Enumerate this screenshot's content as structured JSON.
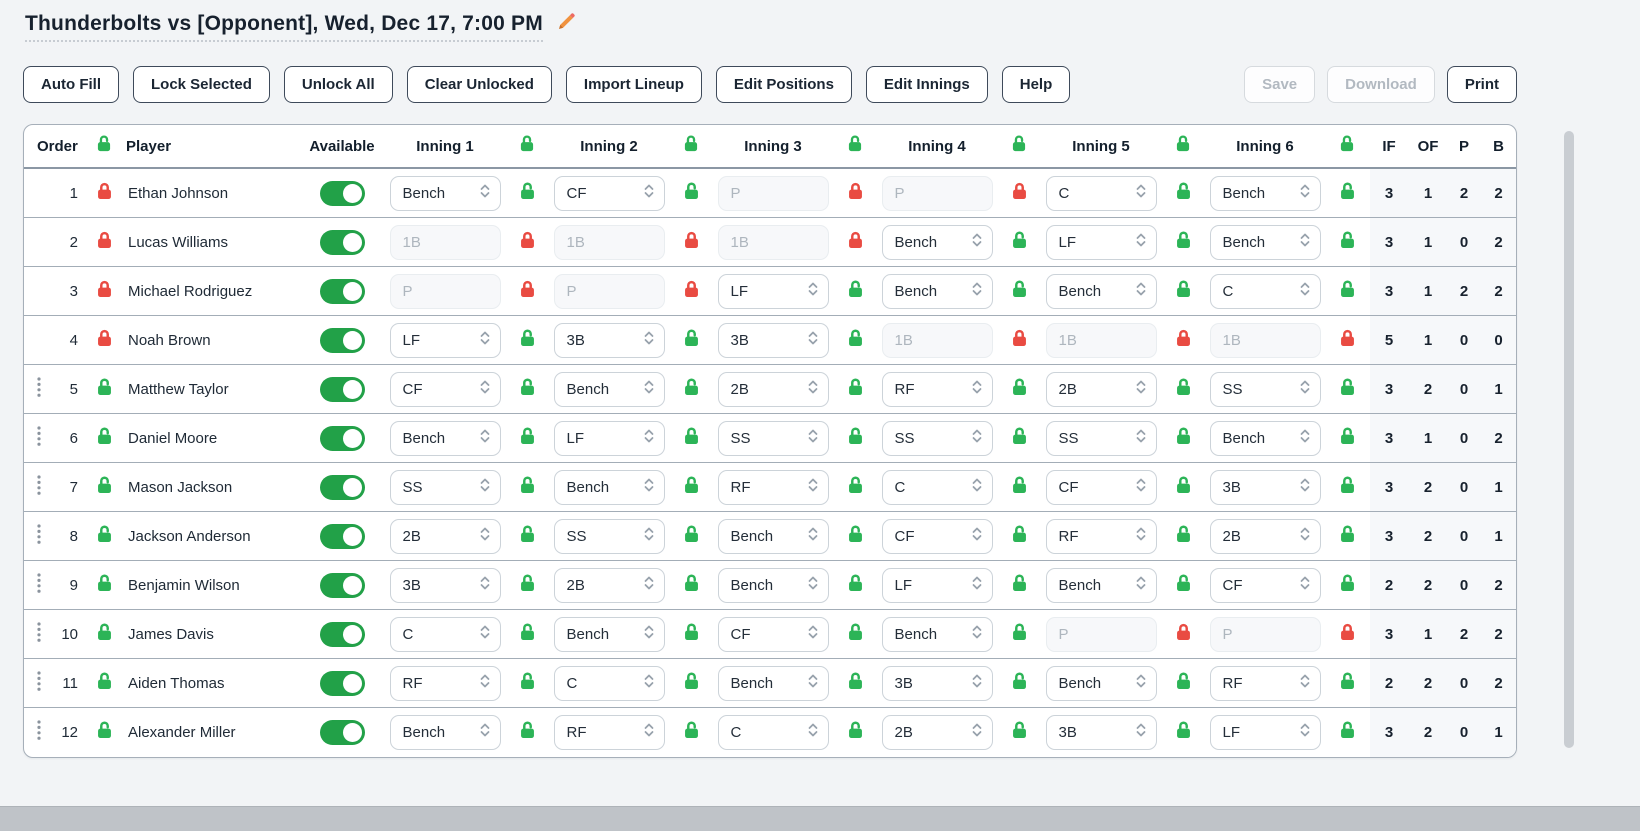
{
  "page": {
    "title": "Thunderbolts vs [Opponent], Wed, Dec 17, 7:00 PM"
  },
  "toolbar": {
    "left_buttons": [
      {
        "label": "Auto Fill",
        "enabled": true
      },
      {
        "label": "Lock Selected",
        "enabled": true
      },
      {
        "label": "Unlock All",
        "enabled": true
      },
      {
        "label": "Clear Unlocked",
        "enabled": true
      },
      {
        "label": "Import Lineup",
        "enabled": true
      },
      {
        "label": "Edit Positions",
        "enabled": true
      },
      {
        "label": "Edit Innings",
        "enabled": true
      },
      {
        "label": "Help",
        "enabled": true
      }
    ],
    "right_buttons": [
      {
        "label": "Save",
        "enabled": false
      },
      {
        "label": "Download",
        "enabled": false
      },
      {
        "label": "Print",
        "enabled": true
      }
    ]
  },
  "table": {
    "header": {
      "order_label": "Order",
      "player_label": "Player",
      "available_label": "Available",
      "inning_labels": [
        "Inning 1",
        "Inning 2",
        "Inning 3",
        "Inning 4",
        "Inning 5",
        "Inning 6"
      ],
      "stat_labels": [
        "IF",
        "OF",
        "P",
        "B"
      ],
      "column_locks_unlocked": true
    },
    "rows": [
      {
        "order": 1,
        "row_locked": true,
        "drag_handle": false,
        "name": "Ethan Johnson",
        "available": true,
        "innings": [
          {
            "position": "Bench",
            "locked": false
          },
          {
            "position": "CF",
            "locked": false
          },
          {
            "position": "P",
            "locked": true
          },
          {
            "position": "P",
            "locked": true
          },
          {
            "position": "C",
            "locked": false
          },
          {
            "position": "Bench",
            "locked": false
          }
        ],
        "stats": {
          "IF": 3,
          "OF": 1,
          "P": 2,
          "B": 2
        }
      },
      {
        "order": 2,
        "row_locked": true,
        "drag_handle": false,
        "name": "Lucas Williams",
        "available": true,
        "innings": [
          {
            "position": "1B",
            "locked": true
          },
          {
            "position": "1B",
            "locked": true
          },
          {
            "position": "1B",
            "locked": true
          },
          {
            "position": "Bench",
            "locked": false
          },
          {
            "position": "LF",
            "locked": false
          },
          {
            "position": "Bench",
            "locked": false
          }
        ],
        "stats": {
          "IF": 3,
          "OF": 1,
          "P": 0,
          "B": 2
        }
      },
      {
        "order": 3,
        "row_locked": true,
        "drag_handle": false,
        "name": "Michael Rodriguez",
        "available": true,
        "innings": [
          {
            "position": "P",
            "locked": true
          },
          {
            "position": "P",
            "locked": true
          },
          {
            "position": "LF",
            "locked": false
          },
          {
            "position": "Bench",
            "locked": false
          },
          {
            "position": "Bench",
            "locked": false
          },
          {
            "position": "C",
            "locked": false
          }
        ],
        "stats": {
          "IF": 3,
          "OF": 1,
          "P": 2,
          "B": 2
        }
      },
      {
        "order": 4,
        "row_locked": true,
        "drag_handle": false,
        "name": "Noah Brown",
        "available": true,
        "innings": [
          {
            "position": "LF",
            "locked": false
          },
          {
            "position": "3B",
            "locked": false
          },
          {
            "position": "3B",
            "locked": false
          },
          {
            "position": "1B",
            "locked": true
          },
          {
            "position": "1B",
            "locked": true
          },
          {
            "position": "1B",
            "locked": true
          }
        ],
        "stats": {
          "IF": 5,
          "OF": 1,
          "P": 0,
          "B": 0
        }
      },
      {
        "order": 5,
        "row_locked": false,
        "drag_handle": true,
        "name": "Matthew Taylor",
        "available": true,
        "innings": [
          {
            "position": "CF",
            "locked": false
          },
          {
            "position": "Bench",
            "locked": false
          },
          {
            "position": "2B",
            "locked": false
          },
          {
            "position": "RF",
            "locked": false
          },
          {
            "position": "2B",
            "locked": false
          },
          {
            "position": "SS",
            "locked": false
          }
        ],
        "stats": {
          "IF": 3,
          "OF": 2,
          "P": 0,
          "B": 1
        }
      },
      {
        "order": 6,
        "row_locked": false,
        "drag_handle": true,
        "name": "Daniel Moore",
        "available": true,
        "innings": [
          {
            "position": "Bench",
            "locked": false
          },
          {
            "position": "LF",
            "locked": false
          },
          {
            "position": "SS",
            "locked": false
          },
          {
            "position": "SS",
            "locked": false
          },
          {
            "position": "SS",
            "locked": false
          },
          {
            "position": "Bench",
            "locked": false
          }
        ],
        "stats": {
          "IF": 3,
          "OF": 1,
          "P": 0,
          "B": 2
        }
      },
      {
        "order": 7,
        "row_locked": false,
        "drag_handle": true,
        "name": "Mason Jackson",
        "available": true,
        "innings": [
          {
            "position": "SS",
            "locked": false
          },
          {
            "position": "Bench",
            "locked": false
          },
          {
            "position": "RF",
            "locked": false
          },
          {
            "position": "C",
            "locked": false
          },
          {
            "position": "CF",
            "locked": false
          },
          {
            "position": "3B",
            "locked": false
          }
        ],
        "stats": {
          "IF": 3,
          "OF": 2,
          "P": 0,
          "B": 1
        }
      },
      {
        "order": 8,
        "row_locked": false,
        "drag_handle": true,
        "name": "Jackson Anderson",
        "available": true,
        "innings": [
          {
            "position": "2B",
            "locked": false
          },
          {
            "position": "SS",
            "locked": false
          },
          {
            "position": "Bench",
            "locked": false
          },
          {
            "position": "CF",
            "locked": false
          },
          {
            "position": "RF",
            "locked": false
          },
          {
            "position": "2B",
            "locked": false
          }
        ],
        "stats": {
          "IF": 3,
          "OF": 2,
          "P": 0,
          "B": 1
        }
      },
      {
        "order": 9,
        "row_locked": false,
        "drag_handle": true,
        "name": "Benjamin Wilson",
        "available": true,
        "innings": [
          {
            "position": "3B",
            "locked": false
          },
          {
            "position": "2B",
            "locked": false
          },
          {
            "position": "Bench",
            "locked": false
          },
          {
            "position": "LF",
            "locked": false
          },
          {
            "position": "Bench",
            "locked": false
          },
          {
            "position": "CF",
            "locked": false
          }
        ],
        "stats": {
          "IF": 2,
          "OF": 2,
          "P": 0,
          "B": 2
        }
      },
      {
        "order": 10,
        "row_locked": false,
        "drag_handle": true,
        "name": "James Davis",
        "available": true,
        "innings": [
          {
            "position": "C",
            "locked": false
          },
          {
            "position": "Bench",
            "locked": false
          },
          {
            "position": "CF",
            "locked": false
          },
          {
            "position": "Bench",
            "locked": false
          },
          {
            "position": "P",
            "locked": true
          },
          {
            "position": "P",
            "locked": true
          }
        ],
        "stats": {
          "IF": 3,
          "OF": 1,
          "P": 2,
          "B": 2
        }
      },
      {
        "order": 11,
        "row_locked": false,
        "drag_handle": true,
        "name": "Aiden Thomas",
        "available": true,
        "innings": [
          {
            "position": "RF",
            "locked": false
          },
          {
            "position": "C",
            "locked": false
          },
          {
            "position": "Bench",
            "locked": false
          },
          {
            "position": "3B",
            "locked": false
          },
          {
            "position": "Bench",
            "locked": false
          },
          {
            "position": "RF",
            "locked": false
          }
        ],
        "stats": {
          "IF": 2,
          "OF": 2,
          "P": 0,
          "B": 2
        }
      },
      {
        "order": 12,
        "row_locked": false,
        "drag_handle": true,
        "name": "Alexander Miller",
        "available": true,
        "innings": [
          {
            "position": "Bench",
            "locked": false
          },
          {
            "position": "RF",
            "locked": false
          },
          {
            "position": "C",
            "locked": false
          },
          {
            "position": "2B",
            "locked": false
          },
          {
            "position": "3B",
            "locked": false
          },
          {
            "position": "LF",
            "locked": false
          }
        ],
        "stats": {
          "IF": 3,
          "OF": 2,
          "P": 0,
          "B": 1
        }
      }
    ]
  },
  "icons": {
    "edit_title": "pencil-icon",
    "locked": "closed-lock-icon",
    "unlocked": "open-lock-icon",
    "drag": "drag-handle-icon",
    "select_arrows": "chevron-up-down-icon"
  },
  "colors": {
    "lock_green": "#2cb457",
    "lock_red": "#e94b42",
    "toggle_green": "#22a148",
    "title_text": "#17212e",
    "row_border": "#a3adb7",
    "stats_bg": "#f6f8fa",
    "pencil_orange": "#f0923f"
  }
}
